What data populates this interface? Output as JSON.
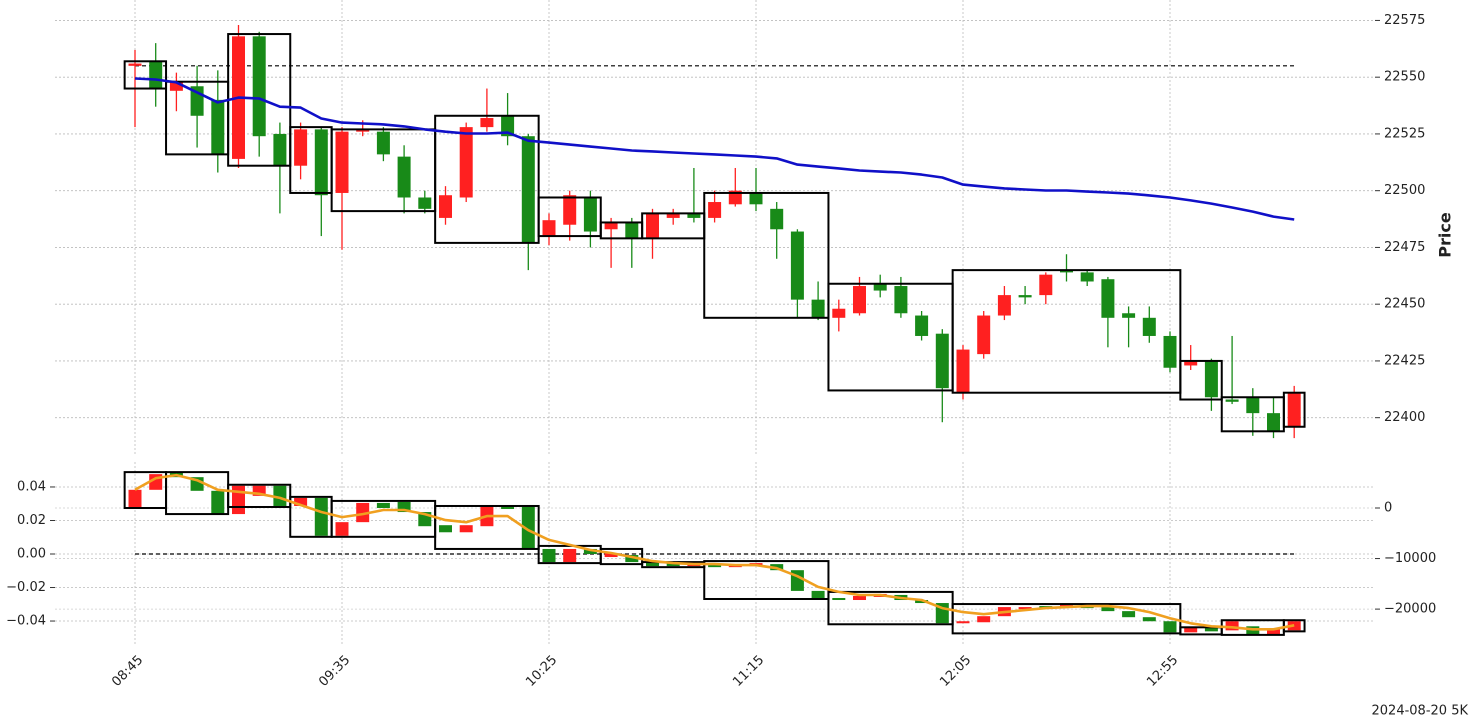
{
  "chart_data": [
    {
      "type": "candlestick",
      "ylabel": "Price",
      "open": [
        22555,
        22557,
        22544,
        22546,
        22540,
        22514,
        22568,
        22525,
        22511,
        22527,
        22499,
        22526,
        22526,
        22515,
        22497,
        22488,
        22497,
        22528,
        22533,
        22524,
        22480,
        22485,
        22497,
        22483,
        22486,
        22479,
        22488,
        22490,
        22488,
        22494,
        22499,
        22492,
        22482,
        22452,
        22444,
        22446,
        22459,
        22458,
        22445,
        22437,
        22411,
        22428,
        22445,
        22454,
        22454,
        22465,
        22464,
        22461,
        22446,
        22444,
        22436,
        22423,
        22425,
        22408,
        22409,
        22402,
        22396
      ],
      "high": [
        22562,
        22565,
        22552,
        22555,
        22553,
        22573,
        22570,
        22530,
        22530,
        22528,
        22528,
        22531,
        22528,
        22520,
        22500,
        22502,
        22530,
        22545,
        22543,
        22525,
        22490,
        22500,
        22500,
        22488,
        22488,
        22492,
        22492,
        22510,
        22500,
        22510,
        22510,
        22495,
        22483,
        22460,
        22452,
        22462,
        22463,
        22462,
        22447,
        22439,
        22432,
        22447,
        22458,
        22458,
        22464,
        22472,
        22465,
        22462,
        22449,
        22449,
        22438,
        22432,
        22426,
        22436,
        22413,
        22409,
        22414
      ],
      "low": [
        22528,
        22537,
        22535,
        22519,
        22508,
        22510,
        22515,
        22490,
        22505,
        22480,
        22474,
        22524,
        22513,
        22490,
        22490,
        22485,
        22495,
        22526,
        22520,
        22465,
        22476,
        22478,
        22475,
        22466,
        22466,
        22470,
        22485,
        22486,
        22486,
        22493,
        22491,
        22470,
        22444,
        22443,
        22438,
        22445,
        22453,
        22444,
        22434,
        22398,
        22408,
        22426,
        22443,
        22450,
        22450,
        22460,
        22458,
        22431,
        22431,
        22433,
        22420,
        22421,
        22403,
        22406,
        22392,
        22391,
        22391
      ],
      "close": [
        22556,
        22545,
        22548,
        22533,
        22516,
        22568,
        22524,
        22511,
        22527,
        22498,
        22526,
        22527,
        22516,
        22497,
        22492,
        22498,
        22528,
        22532,
        22524,
        22477,
        22487,
        22498,
        22482,
        22486,
        22479,
        22490,
        22490,
        22488,
        22495,
        22500,
        22494,
        22483,
        22452,
        22444,
        22448,
        22458,
        22456,
        22446,
        22436,
        22413,
        22430,
        22445,
        22454,
        22453,
        22463,
        22464,
        22460,
        22444,
        22444,
        22436,
        22422,
        22425,
        22409,
        22407,
        22402,
        22394,
        22411
      ],
      "up_color": "#ff2020",
      "down_color": "#188a18",
      "line": {
        "color": "#1010c8",
        "values": [
          22549.4,
          22549,
          22547.7,
          22543.3,
          22538.9,
          22541,
          22540.6,
          22537,
          22536.6,
          22531.8,
          22530,
          22529.6,
          22529.2,
          22528.3,
          22527,
          22526,
          22525.2,
          22525.2,
          22525.6,
          22522,
          22521.2,
          22520.3,
          22519.4,
          22518.6,
          22517.7,
          22517.3,
          22516.8,
          22516.4,
          22516,
          22515.5,
          22515,
          22514.2,
          22511.5,
          22510.6,
          22509.8,
          22508.9,
          22508.4,
          22508,
          22507.1,
          22505.8,
          22502.7,
          22501.8,
          22501,
          22500.5,
          22500.1,
          22500.1,
          22499.6,
          22499.2,
          22498.7,
          22497.9,
          22497,
          22495.7,
          22494.3,
          22492.6,
          22490.8,
          22488.6,
          22487.3
        ]
      },
      "hline": 22555,
      "boxes": {
        "start": [
          0,
          2,
          5,
          8,
          10,
          15,
          20,
          23,
          25,
          28,
          34,
          40,
          51,
          53,
          56
        ],
        "end": [
          1,
          4,
          7,
          9,
          14,
          19,
          22,
          24,
          27,
          33,
          39,
          50,
          52,
          55,
          56
        ],
        "high": [
          22557,
          22548,
          22569,
          22528,
          22527,
          22533,
          22497,
          22486,
          22490,
          22499,
          22459,
          22465,
          22425,
          22409,
          22411
        ],
        "low": [
          22545,
          22516,
          22511,
          22499,
          22491,
          22477,
          22480,
          22479,
          22479,
          22444,
          22412,
          22411,
          22408,
          22394,
          22396
        ]
      },
      "ylim": [
        22384,
        22584
      ],
      "yticks": [
        22400,
        22425,
        22450,
        22475,
        22500,
        22525,
        22550,
        22575
      ],
      "grid": true
    },
    {
      "type": "candlestick",
      "categories": [
        "08:45",
        null,
        null,
        null,
        null,
        null,
        null,
        null,
        null,
        null,
        "09:35",
        null,
        null,
        null,
        null,
        null,
        null,
        null,
        null,
        null,
        "10:25",
        null,
        null,
        null,
        null,
        null,
        null,
        null,
        null,
        null,
        "11:15",
        null,
        null,
        null,
        null,
        null,
        null,
        null,
        null,
        null,
        "12:05",
        null,
        null,
        null,
        null,
        null,
        null,
        null,
        null,
        null,
        "12:55",
        null,
        null,
        null,
        null,
        null,
        null
      ],
      "open": [
        0,
        3600,
        7100,
        6100,
        3400,
        -1200,
        2400,
        4400,
        400,
        2000,
        -5500,
        -2800,
        1000,
        1200,
        -800,
        -3400,
        -4800,
        -3600,
        400,
        200,
        -8100,
        -10700,
        -8100,
        -9700,
        -9300,
        -10700,
        -10900,
        -11500,
        -11100,
        -11700,
        -11500,
        -11100,
        -12300,
        -16400,
        -17800,
        -18200,
        -17600,
        -17200,
        -18200,
        -18800,
        -22800,
        -22600,
        -21400,
        -20000,
        -19400,
        -19600,
        -19200,
        -19600,
        -20400,
        -21600,
        -22400,
        -24600,
        -23600,
        -24200,
        -23400,
        -25000,
        -24200
      ],
      "close": [
        3600,
        6700,
        6100,
        3400,
        -1200,
        4400,
        4400,
        400,
        2000,
        -5500,
        -2800,
        1000,
        0,
        -800,
        -3600,
        -4800,
        -3400,
        400,
        -200,
        -8100,
        -10700,
        -8100,
        -9100,
        -8900,
        -10700,
        -11500,
        -11500,
        -11100,
        -11700,
        -11300,
        -10900,
        -12300,
        -16400,
        -17800,
        -18200,
        -17400,
        -17000,
        -18200,
        -18800,
        -22800,
        -22400,
        -21400,
        -19600,
        -19600,
        -19800,
        -19200,
        -19800,
        -20400,
        -21600,
        -22400,
        -24600,
        -23600,
        -24400,
        -22400,
        -25000,
        -24000,
        -22400
      ],
      "up_color": "#ff2020",
      "down_color": "#188a18",
      "line": {
        "color": "#f0a020",
        "values": [
          3600,
          5900,
          6500,
          5500,
          3600,
          3200,
          2800,
          2000,
          600,
          -800,
          -1800,
          -1200,
          -400,
          -400,
          -1200,
          -2400,
          -2800,
          -1600,
          -1600,
          -4400,
          -6300,
          -7300,
          -8300,
          -8900,
          -9700,
          -10500,
          -10900,
          -11100,
          -11100,
          -11300,
          -11300,
          -11900,
          -13500,
          -15600,
          -16600,
          -17200,
          -17200,
          -17800,
          -18200,
          -19800,
          -20600,
          -21000,
          -20600,
          -20200,
          -19800,
          -19600,
          -19400,
          -19400,
          -19800,
          -20600,
          -21800,
          -22800,
          -23400,
          -23600,
          -24000,
          -24000,
          -23200
        ]
      },
      "hline": 0,
      "boxes": {
        "start": [
          0,
          2,
          5,
          8,
          10,
          15,
          20,
          23,
          25,
          28,
          34,
          40,
          51,
          53,
          56
        ],
        "end": [
          1,
          4,
          7,
          9,
          14,
          19,
          22,
          24,
          27,
          33,
          39,
          50,
          52,
          55,
          56
        ],
        "high": [
          7100,
          7100,
          4600,
          2200,
          1400,
          400,
          -7500,
          -8100,
          -10700,
          -10500,
          -16600,
          -19000,
          -23600,
          -22200,
          -22200
        ],
        "low": [
          0,
          -1200,
          200,
          -5700,
          -5700,
          -8100,
          -10900,
          -11100,
          -11700,
          -18000,
          -23000,
          -24800,
          -25000,
          -25100,
          -24400
        ]
      },
      "ylim": [
        -0.0543,
        0.0549
      ],
      "yticks": [
        0.04,
        0.02,
        {
          "value": 0,
          "label": "0.00"
        },
        {
          "value": -0.02,
          "label": "−0.02"
        },
        {
          "value": -0.04,
          "label": "−0.04"
        }
      ],
      "y2lim": [
        -27100,
        9100
      ],
      "y2ticks": [
        0,
        {
          "value": -10000,
          "label": "−10000"
        },
        {
          "value": -20000,
          "label": "−20000"
        }
      ],
      "grid": true
    }
  ],
  "footer": "2024-08-20 5K"
}
